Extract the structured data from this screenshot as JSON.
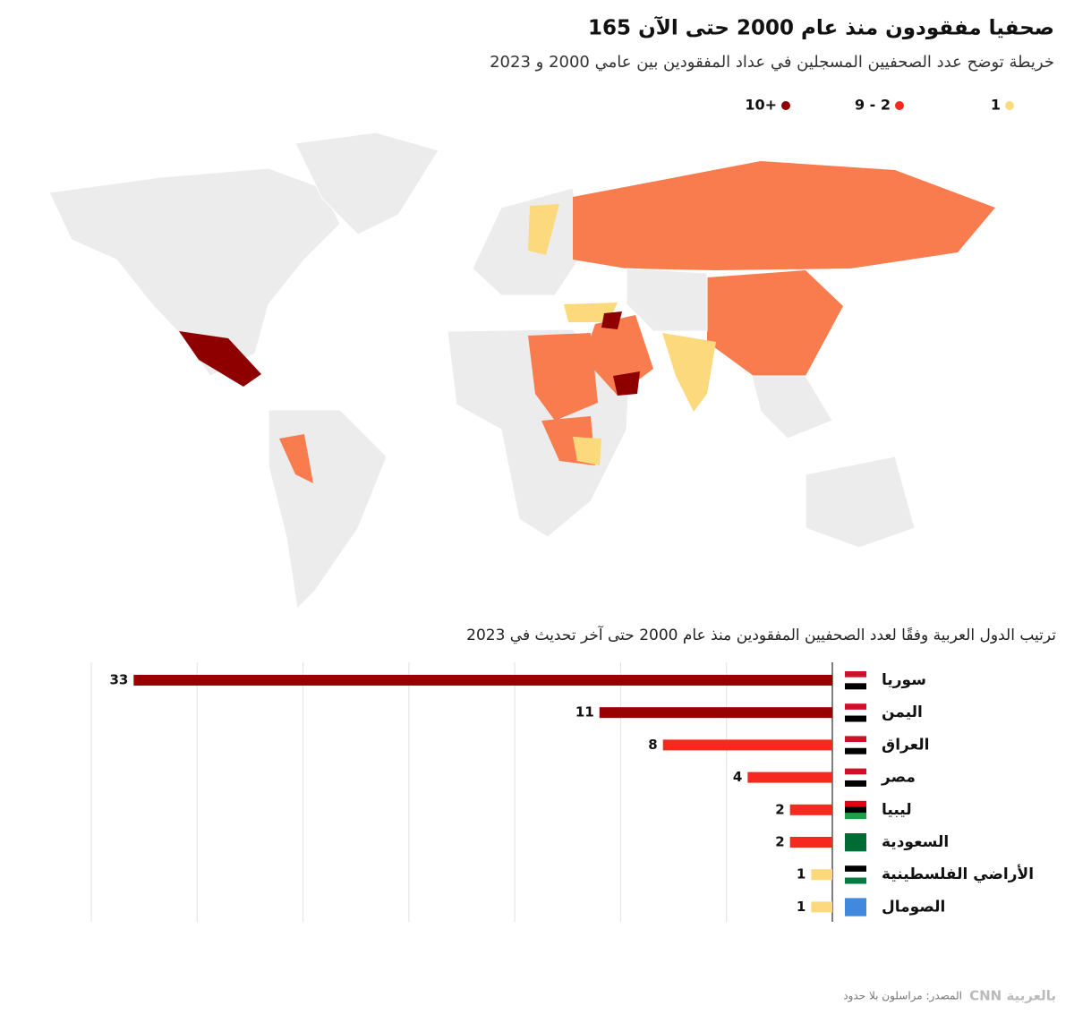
{
  "header": {
    "title": "165 صحفيا مفقودون منذ عام 2000 حتى الآن",
    "subtitle": "خريطة توضح عدد الصحفيين المسجلين في عداد المفقودين بين عامي 2000 و 2023"
  },
  "map_legend": [
    {
      "label": "10+",
      "color": "#8e0000"
    },
    {
      "label": "9 - 2",
      "color": "#f5291e"
    },
    {
      "label": "1",
      "color": "#fcd97c"
    }
  ],
  "chart_data": {
    "type": "bar",
    "orientation": "horizontal",
    "title": "ترتيب الدول العربية وفقًا لعدد الصحفيين المفقودين منذ عام 2000 حتى آخر تحديث في 2023",
    "categories": [
      "سوريا",
      "اليمن",
      "العراق",
      "مصر",
      "ليبيا",
      "السعودية",
      "الأراضي الفلسطينية",
      "الصومال"
    ],
    "values": [
      33,
      11,
      8,
      4,
      2,
      2,
      1,
      1
    ],
    "colors": [
      "#990000",
      "#990000",
      "#f5291e",
      "#f5291e",
      "#f5291e",
      "#f5291e",
      "#fcd97c",
      "#fcd97c"
    ],
    "xlim": [
      0,
      35
    ],
    "xticks": [
      0,
      5,
      10,
      15,
      20,
      25,
      30,
      35
    ],
    "grid": true
  },
  "footer": {
    "source": "المصدر: مراسلون بلا حدود",
    "logo": "CNN بالعربية"
  }
}
